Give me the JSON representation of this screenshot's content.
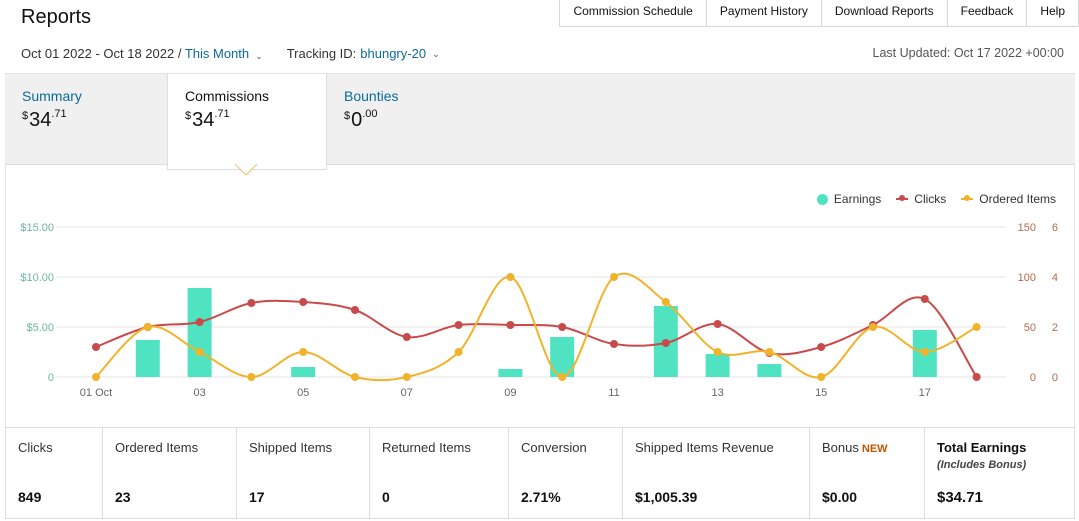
{
  "page_title": "Reports",
  "topnav": [
    "Commission Schedule",
    "Payment History",
    "Download Reports",
    "Feedback",
    "Help"
  ],
  "filters": {
    "date_range": "Oct 01 2022 - Oct 18 2022 /",
    "period": "This Month",
    "tracking_label": "Tracking ID:",
    "tracking_id": "bhungry-20",
    "last_updated": "Last Updated: Oct 17 2022 +00:00"
  },
  "tabs": [
    {
      "label": "Summary",
      "currency": "$",
      "whole": "34",
      "cents": ".71"
    },
    {
      "label": "Commissions",
      "currency": "$",
      "whole": "34",
      "cents": ".71"
    },
    {
      "label": "Bounties",
      "currency": "$",
      "whole": "0",
      "cents": ".00"
    }
  ],
  "colors": {
    "earnings": "#50e3c2",
    "clicks": "#c94a4a",
    "ordered": "#f0b32a",
    "grid": "#e4e4e4",
    "left_axis": "#6cb89d",
    "right_axis": "#b56a4a"
  },
  "chart_data": {
    "type": "bar+line",
    "legend": [
      "Earnings",
      "Clicks",
      "Ordered Items"
    ],
    "legend_position": "top-right",
    "x_tick_labels": [
      "01 Oct",
      "03",
      "05",
      "07",
      "09",
      "11",
      "13",
      "15",
      "17"
    ],
    "x": [
      "01 Oct",
      "02",
      "03",
      "04",
      "05",
      "06",
      "07",
      "08",
      "09",
      "10",
      "11",
      "12",
      "13",
      "14",
      "15",
      "16",
      "17",
      "18"
    ],
    "earnings_axis": {
      "ticks": [
        "$15.00",
        "$10.00",
        "$5.00",
        "0"
      ],
      "range": [
        0,
        15
      ]
    },
    "clicks_axis": {
      "ticks": [
        "150",
        "100",
        "50",
        "0"
      ],
      "range": [
        0,
        150
      ]
    },
    "ordered_axis": {
      "ticks": [
        "6",
        "4",
        "2",
        "0"
      ],
      "range": [
        0,
        6
      ]
    },
    "series": [
      {
        "name": "Earnings",
        "kind": "bar",
        "values": [
          0,
          3.7,
          8.9,
          0,
          1.0,
          0,
          0,
          0,
          0.8,
          4.0,
          0,
          7.1,
          2.3,
          1.3,
          0,
          0,
          4.7,
          0
        ]
      },
      {
        "name": "Clicks",
        "kind": "line",
        "values": [
          30,
          50,
          55,
          74,
          75,
          67,
          40,
          52,
          52,
          50,
          33,
          34,
          53,
          24,
          30,
          52,
          78,
          0
        ]
      },
      {
        "name": "Ordered Items",
        "kind": "line",
        "values": [
          0,
          2,
          1,
          0,
          1,
          0,
          0,
          1,
          4,
          0,
          4,
          3,
          1,
          1,
          0,
          2,
          1,
          2
        ]
      }
    ],
    "grid": true
  },
  "stats": [
    {
      "label": "Clicks",
      "value": "849"
    },
    {
      "label": "Ordered Items",
      "value": "23"
    },
    {
      "label": "Shipped Items",
      "value": "17"
    },
    {
      "label": "Returned Items",
      "value": "0"
    },
    {
      "label": "Conversion",
      "value": "2.71%"
    },
    {
      "label": "Shipped Items Revenue",
      "value": "$1,005.39"
    },
    {
      "label": "Bonus",
      "badge": "NEW",
      "value": "$0.00"
    },
    {
      "label": "Total Earnings",
      "sublabel": "(Includes Bonus)",
      "value": "$34.71"
    }
  ]
}
